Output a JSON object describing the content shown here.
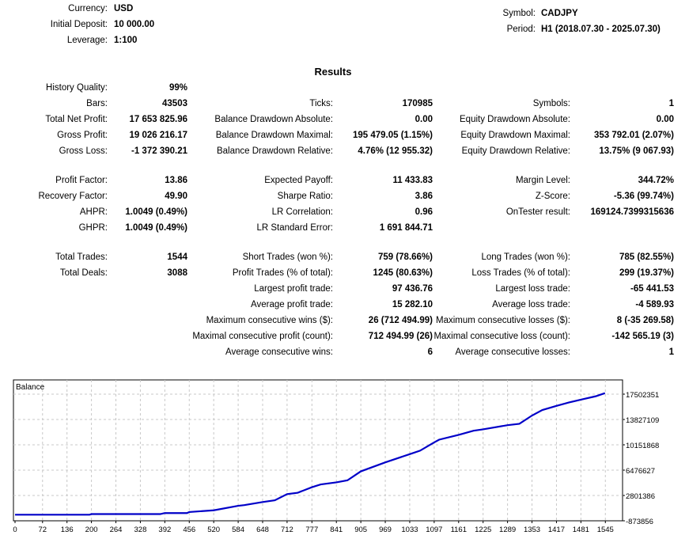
{
  "header": {
    "left": [
      {
        "label": "Currency:",
        "value": "USD"
      },
      {
        "label": "Initial Deposit:",
        "value": "10 000.00"
      },
      {
        "label": "Leverage:",
        "value": "1:100"
      }
    ],
    "right": [
      {
        "label": "Symbol:",
        "value": "CADJPY"
      },
      {
        "label": "Period:",
        "value": "H1 (2018.07.30 - 2025.07.30)"
      }
    ]
  },
  "results_title": "Results",
  "sections": [
    [
      [
        [
          "History Quality:",
          "99%"
        ],
        null,
        null
      ],
      [
        [
          "Bars:",
          "43503"
        ],
        [
          "Ticks:",
          "170985"
        ],
        [
          "Symbols:",
          "1"
        ]
      ],
      [
        [
          "Total Net Profit:",
          "17 653 825.96"
        ],
        [
          "Balance Drawdown Absolute:",
          "0.00"
        ],
        [
          "Equity Drawdown Absolute:",
          "0.00"
        ]
      ],
      [
        [
          "Gross Profit:",
          "19 026 216.17"
        ],
        [
          "Balance Drawdown Maximal:",
          "195 479.05 (1.15%)"
        ],
        [
          "Equity Drawdown Maximal:",
          "353 792.01 (2.07%)"
        ]
      ],
      [
        [
          "Gross Loss:",
          "-1 372 390.21"
        ],
        [
          "Balance Drawdown Relative:",
          "4.76% (12 955.32)"
        ],
        [
          "Equity Drawdown Relative:",
          "13.75% (9 067.93)"
        ]
      ]
    ],
    [
      [
        [
          "Profit Factor:",
          "13.86"
        ],
        [
          "Expected Payoff:",
          "11 433.83"
        ],
        [
          "Margin Level:",
          "344.72%"
        ]
      ],
      [
        [
          "Recovery Factor:",
          "49.90"
        ],
        [
          "Sharpe Ratio:",
          "3.86"
        ],
        [
          "Z-Score:",
          "-5.36 (99.74%)"
        ]
      ],
      [
        [
          "AHPR:",
          "1.0049 (0.49%)"
        ],
        [
          "LR Correlation:",
          "0.96"
        ],
        [
          "OnTester result:",
          "169124.7399315636"
        ]
      ],
      [
        [
          "GHPR:",
          "1.0049 (0.49%)"
        ],
        [
          "LR Standard Error:",
          "1 691 844.71"
        ],
        null
      ]
    ],
    [
      [
        [
          "Total Trades:",
          "1544"
        ],
        [
          "Short Trades (won %):",
          "759 (78.66%)"
        ],
        [
          "Long Trades (won %):",
          "785 (82.55%)"
        ]
      ],
      [
        [
          "Total Deals:",
          "3088"
        ],
        [
          "Profit Trades (% of total):",
          "1245 (80.63%)"
        ],
        [
          "Loss Trades (% of total):",
          "299 (19.37%)"
        ]
      ],
      [
        null,
        [
          "Largest profit trade:",
          "97 436.76"
        ],
        [
          "Largest loss trade:",
          "-65 441.53"
        ]
      ],
      [
        null,
        [
          "Average profit trade:",
          "15 282.10"
        ],
        [
          "Average loss trade:",
          "-4 589.93"
        ]
      ],
      [
        null,
        [
          "Maximum consecutive wins ($):",
          "26 (712 494.99)"
        ],
        [
          "Maximum consecutive losses ($):",
          "8 (-35 269.58)"
        ]
      ],
      [
        null,
        [
          "Maximal consecutive profit (count):",
          "712 494.99 (26)"
        ],
        [
          "Maximal consecutive loss (count):",
          "-142 565.19 (3)"
        ]
      ],
      [
        null,
        [
          "Average consecutive wins:",
          "6"
        ],
        [
          "Average consecutive losses:",
          "1"
        ]
      ]
    ]
  ],
  "chart_data": {
    "type": "line",
    "title": "Balance",
    "line_color": "#0000c8",
    "grid": true,
    "x_ticks": [
      "0",
      "72",
      "136",
      "200",
      "264",
      "328",
      "392",
      "456",
      "520",
      "584",
      "648",
      "712",
      "777",
      "841",
      "905",
      "969",
      "1033",
      "1097",
      "1161",
      "1225",
      "1289",
      "1353",
      "1417",
      "1481",
      "1545"
    ],
    "y_ticks": [
      "17502351",
      "13827109",
      "10151868",
      "6476627",
      "2801386",
      "-873856"
    ],
    "xlim": [
      0,
      1590
    ],
    "ylim": [
      -873856,
      19300000
    ],
    "series": [
      {
        "x": [
          0,
          195,
          200,
          380,
          392,
          450,
          456,
          520,
          584,
          600,
          648,
          680,
          712,
          740,
          777,
          800,
          841,
          870,
          905,
          969,
          1033,
          1060,
          1097,
          1110,
          1161,
          1200,
          1225,
          1289,
          1320,
          1353,
          1380,
          1417,
          1450,
          1481,
          1520,
          1544
        ],
        "y": [
          10000,
          10000,
          100000,
          100000,
          250000,
          250000,
          400000,
          650000,
          1300000,
          1400000,
          1850000,
          2100000,
          3000000,
          3200000,
          4000000,
          4400000,
          4700000,
          5000000,
          6300000,
          7600000,
          8800000,
          9300000,
          10500000,
          10900000,
          11600000,
          12200000,
          12400000,
          13000000,
          13200000,
          14400000,
          15200000,
          15800000,
          16300000,
          16700000,
          17200000,
          17650000
        ]
      }
    ]
  }
}
